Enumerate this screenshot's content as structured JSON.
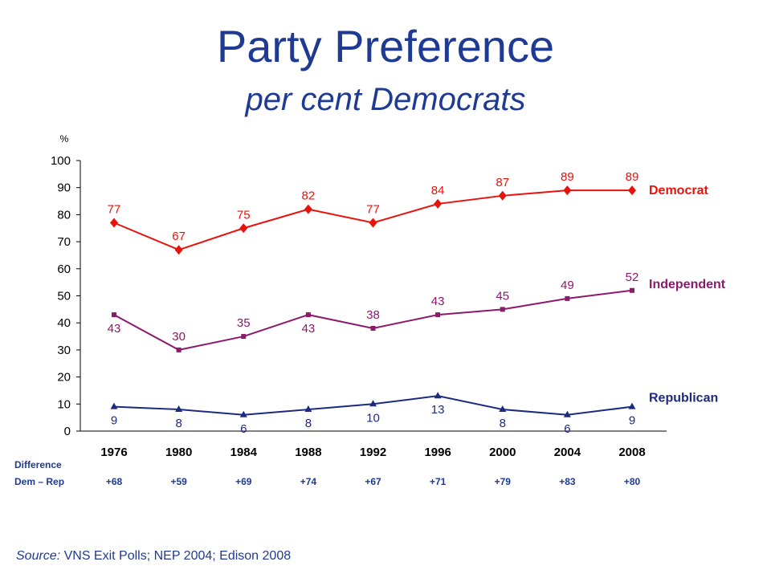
{
  "title": "Party Preference",
  "subtitle": "per cent Democrats",
  "source_label": "Source:",
  "source_text": " VNS Exit Polls; NEP 2004; Edison 2008",
  "colors": {
    "democrat": "#e8120c",
    "independent": "#8b1a6b",
    "republican": "#1c2a80",
    "text": "#1f3a93"
  },
  "chart_data": {
    "type": "line",
    "ylabel": "%",
    "ylim": [
      0,
      100
    ],
    "yticks": [
      0,
      10,
      20,
      30,
      40,
      50,
      60,
      70,
      80,
      90,
      100
    ],
    "categories": [
      "1976",
      "1980",
      "1984",
      "1988",
      "1992",
      "1996",
      "2000",
      "2004",
      "2008"
    ],
    "series": [
      {
        "name": "Democrat",
        "values": [
          77,
          67,
          75,
          82,
          77,
          84,
          87,
          89,
          89
        ],
        "color": "#e8120c",
        "marker": "diamond",
        "label_position": "above"
      },
      {
        "name": "Independent",
        "values": [
          43,
          30,
          35,
          43,
          38,
          43,
          45,
          49,
          52
        ],
        "color": "#8b1a6b",
        "marker": "square",
        "label_position": [
          "below",
          "above",
          "above",
          "below",
          "above",
          "above",
          "above",
          "above",
          "above"
        ]
      },
      {
        "name": "Republican",
        "values": [
          9,
          8,
          6,
          8,
          10,
          13,
          8,
          6,
          9
        ],
        "color": "#1c2a80",
        "marker": "triangle",
        "label_position": "below"
      }
    ],
    "difference": {
      "label_line1": "Difference",
      "label_line2": "Dem – Rep",
      "values": [
        "+68",
        "+59",
        "+69",
        "+74",
        "+67",
        "+71",
        "+79",
        "+83",
        "+80"
      ]
    },
    "grid": false,
    "legend": "inline-right"
  }
}
